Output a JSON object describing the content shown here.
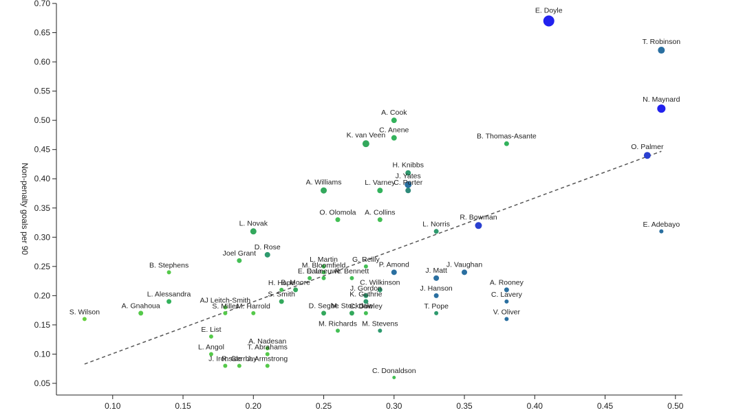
{
  "chart_data": {
    "type": "scatter",
    "title": "",
    "xlabel": "",
    "ylabel": "Non-penalty goals per 90",
    "xlim": [
      0.06,
      0.505
    ],
    "ylim": [
      0.03,
      0.7
    ],
    "x_ticks": [
      "0.10",
      "0.15",
      "0.20",
      "0.25",
      "0.30",
      "0.35",
      "0.40",
      "0.45",
      "0.50"
    ],
    "y_ticks": [
      "0.05",
      "0.10",
      "0.15",
      "0.20",
      "0.25",
      "0.30",
      "0.35",
      "0.40",
      "0.45",
      "0.50",
      "0.55",
      "0.60",
      "0.65",
      "0.70"
    ],
    "grid": false,
    "trendline": {
      "style": "dashed",
      "from": [
        0.08,
        0.083
      ],
      "to": [
        0.49,
        0.447
      ]
    },
    "points": [
      {
        "name": "E. Doyle",
        "x": 0.41,
        "y": 0.67,
        "size": 8,
        "color": "#2222ee"
      },
      {
        "name": "T. Robinson",
        "x": 0.49,
        "y": 0.62,
        "size": 5,
        "color": "#2a6fa0"
      },
      {
        "name": "N. Maynard",
        "x": 0.49,
        "y": 0.52,
        "size": 6,
        "color": "#2222ee"
      },
      {
        "name": "O. Palmer",
        "x": 0.48,
        "y": 0.44,
        "size": 5,
        "color": "#2a40d0"
      },
      {
        "name": "E. Adebayo",
        "x": 0.49,
        "y": 0.31,
        "size": 3,
        "color": "#2a6fa0"
      },
      {
        "name": "R. Bowman",
        "x": 0.36,
        "y": 0.32,
        "size": 5,
        "color": "#2a40d0"
      },
      {
        "name": "A. Cook",
        "x": 0.3,
        "y": 0.5,
        "size": 4,
        "color": "#33b25c"
      },
      {
        "name": "C. Anene",
        "x": 0.3,
        "y": 0.47,
        "size": 4,
        "color": "#33b25c"
      },
      {
        "name": "K. van Veen",
        "x": 0.28,
        "y": 0.46,
        "size": 5,
        "color": "#33a85c"
      },
      {
        "name": "B. Thomas-Asante",
        "x": 0.38,
        "y": 0.46,
        "size": 3.5,
        "color": "#33b25c"
      },
      {
        "name": "H. Knibbs",
        "x": 0.31,
        "y": 0.41,
        "size": 4,
        "color": "#2e9a6e"
      },
      {
        "name": "J. Yates",
        "x": 0.31,
        "y": 0.39,
        "size": 5,
        "color": "#2a6fa0"
      },
      {
        "name": "C. Porter",
        "x": 0.31,
        "y": 0.38,
        "size": 4,
        "color": "#2e8a7a"
      },
      {
        "name": "A. Williams",
        "x": 0.25,
        "y": 0.38,
        "size": 4.5,
        "color": "#33a85c"
      },
      {
        "name": "L. Varney",
        "x": 0.29,
        "y": 0.38,
        "size": 4,
        "color": "#33b25c"
      },
      {
        "name": "O. Olomola",
        "x": 0.26,
        "y": 0.33,
        "size": 3.5,
        "color": "#44bf55"
      },
      {
        "name": "A. Collins",
        "x": 0.29,
        "y": 0.33,
        "size": 3.5,
        "color": "#44bf55"
      },
      {
        "name": "L. Norris",
        "x": 0.33,
        "y": 0.31,
        "size": 3.5,
        "color": "#2e9a6e"
      },
      {
        "name": "L. Novak",
        "x": 0.2,
        "y": 0.31,
        "size": 4.5,
        "color": "#33a85c"
      },
      {
        "name": "D. Rose",
        "x": 0.21,
        "y": 0.27,
        "size": 4,
        "color": "#2e9a6e"
      },
      {
        "name": "Joel Grant",
        "x": 0.19,
        "y": 0.26,
        "size": 3.5,
        "color": "#44bf55"
      },
      {
        "name": "B. Stephens",
        "x": 0.14,
        "y": 0.24,
        "size": 3,
        "color": "#55c94a"
      },
      {
        "name": "L. Martin",
        "x": 0.25,
        "y": 0.25,
        "size": 3,
        "color": "#44bf55"
      },
      {
        "name": "G. Reilly",
        "x": 0.28,
        "y": 0.25,
        "size": 3,
        "color": "#44bf55"
      },
      {
        "name": "M. Bloomfield",
        "x": 0.25,
        "y": 0.24,
        "size": 3,
        "color": "#44bf55"
      },
      {
        "name": "P. Amond",
        "x": 0.3,
        "y": 0.24,
        "size": 4,
        "color": "#2a6fa0"
      },
      {
        "name": "J. Matt",
        "x": 0.33,
        "y": 0.23,
        "size": 4,
        "color": "#2a6fa0"
      },
      {
        "name": "J. Vaughan",
        "x": 0.35,
        "y": 0.24,
        "size": 4,
        "color": "#2a6fa0"
      },
      {
        "name": "E. Dale",
        "x": 0.24,
        "y": 0.23,
        "size": 3,
        "color": "#44bf55"
      },
      {
        "name": "E. Leeuwe",
        "x": 0.25,
        "y": 0.23,
        "size": 3,
        "color": "#44bf55"
      },
      {
        "name": "R. Bennett",
        "x": 0.27,
        "y": 0.23,
        "size": 3,
        "color": "#44bf55"
      },
      {
        "name": "H. Hope",
        "x": 0.22,
        "y": 0.21,
        "size": 3,
        "color": "#44bf55"
      },
      {
        "name": "B. Moore",
        "x": 0.23,
        "y": 0.21,
        "size": 3.5,
        "color": "#33a85c"
      },
      {
        "name": "C. Wilkinson",
        "x": 0.29,
        "y": 0.21,
        "size": 3.5,
        "color": "#2e9a6e"
      },
      {
        "name": "A. Rooney",
        "x": 0.38,
        "y": 0.21,
        "size": 3.5,
        "color": "#2a6fa0"
      },
      {
        "name": "S. Smith",
        "x": 0.22,
        "y": 0.19,
        "size": 3.5,
        "color": "#33a85c"
      },
      {
        "name": "J. Gordon",
        "x": 0.28,
        "y": 0.2,
        "size": 3.5,
        "color": "#2e9a6e"
      },
      {
        "name": "J. Hanson",
        "x": 0.33,
        "y": 0.2,
        "size": 3.5,
        "color": "#2a6fa0"
      },
      {
        "name": "L. Alessandra",
        "x": 0.14,
        "y": 0.19,
        "size": 3.5,
        "color": "#33b25c"
      },
      {
        "name": "A. Gnahoua",
        "x": 0.12,
        "y": 0.17,
        "size": 3.5,
        "color": "#55c94a"
      },
      {
        "name": "AJ Leitch-Smith",
        "x": 0.18,
        "y": 0.18,
        "size": 3,
        "color": "#55c94a"
      },
      {
        "name": "S. Miller",
        "x": 0.18,
        "y": 0.17,
        "size": 3,
        "color": "#55c94a"
      },
      {
        "name": "M. Harrold",
        "x": 0.2,
        "y": 0.17,
        "size": 3,
        "color": "#55c94a"
      },
      {
        "name": "K. Guthrie",
        "x": 0.28,
        "y": 0.19,
        "size": 3.5,
        "color": "#2e9a6e"
      },
      {
        "name": "C. Lavery",
        "x": 0.38,
        "y": 0.19,
        "size": 3,
        "color": "#2a6fa0"
      },
      {
        "name": "D. Segbe",
        "x": 0.25,
        "y": 0.17,
        "size": 3.5,
        "color": "#33a85c"
      },
      {
        "name": "M. Stockdale",
        "x": 0.27,
        "y": 0.17,
        "size": 3.5,
        "color": "#33a85c"
      },
      {
        "name": "C. Dowley",
        "x": 0.28,
        "y": 0.17,
        "size": 3,
        "color": "#44bf55"
      },
      {
        "name": "T. Pope",
        "x": 0.33,
        "y": 0.17,
        "size": 3,
        "color": "#2e9a6e"
      },
      {
        "name": "V. Oliver",
        "x": 0.38,
        "y": 0.16,
        "size": 3,
        "color": "#2a6fa0"
      },
      {
        "name": "S. Wilson",
        "x": 0.08,
        "y": 0.16,
        "size": 3,
        "color": "#66d040"
      },
      {
        "name": "M. Richards",
        "x": 0.26,
        "y": 0.14,
        "size": 3,
        "color": "#44bf55"
      },
      {
        "name": "M. Stevens",
        "x": 0.29,
        "y": 0.14,
        "size": 3,
        "color": "#2e9a6e"
      },
      {
        "name": "E. List",
        "x": 0.17,
        "y": 0.13,
        "size": 3,
        "color": "#55c94a"
      },
      {
        "name": "A. Nadesan",
        "x": 0.21,
        "y": 0.11,
        "size": 3,
        "color": "#55c94a"
      },
      {
        "name": "T. Abrahams",
        "x": 0.21,
        "y": 0.1,
        "size": 3,
        "color": "#55c94a"
      },
      {
        "name": "L. Angol",
        "x": 0.17,
        "y": 0.1,
        "size": 3,
        "color": "#55c94a"
      },
      {
        "name": "J. Ironside",
        "x": 0.18,
        "y": 0.08,
        "size": 3,
        "color": "#55c94a"
      },
      {
        "name": "R. Gerrbay",
        "x": 0.19,
        "y": 0.08,
        "size": 3,
        "color": "#55c94a"
      },
      {
        "name": "J. Armstrong",
        "x": 0.21,
        "y": 0.08,
        "size": 3,
        "color": "#55c94a"
      },
      {
        "name": "C. Donaldson",
        "x": 0.3,
        "y": 0.06,
        "size": 2.5,
        "color": "#44bf55"
      }
    ]
  }
}
